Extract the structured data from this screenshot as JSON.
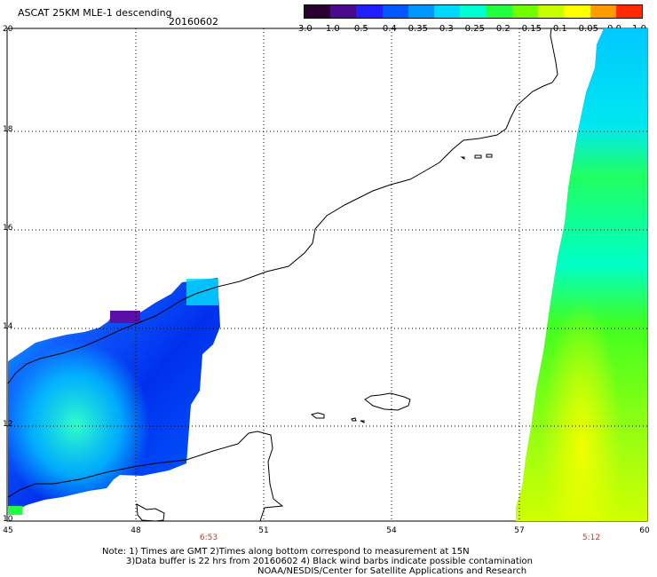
{
  "header": {
    "title": "ASCAT 25KM MLE-1 descending",
    "date": "20160602"
  },
  "colorbar": {
    "labels": [
      "-3.0",
      "-1.0",
      "-0.5",
      "-0.4",
      "-0.35",
      "-0.3",
      "-0.25",
      "-0.2",
      "-0.15",
      "-0.1",
      "-0.05",
      "0.0",
      "1.0"
    ],
    "colors": [
      "#2a0030",
      "#4b0a8c",
      "#2020ff",
      "#0058ff",
      "#0098ff",
      "#00d8ff",
      "#00ffd0",
      "#20ff40",
      "#70ff00",
      "#c8ff00",
      "#ffff00",
      "#ff9a00",
      "#ff2a00"
    ]
  },
  "axes": {
    "lat_labels": [
      "20",
      "18",
      "16",
      "14",
      "12",
      "10"
    ],
    "lon_labels": [
      "45",
      "48",
      "51",
      "54",
      "57",
      "60"
    ],
    "times": [
      "6:53",
      "5:12"
    ]
  },
  "notes": {
    "line1": "Note: 1) Times are GMT 2)Times along bottom correspond to measurement at 15N",
    "line2": "3)Data buffer is 22 hrs from 20160602 4) Black wind barbs indicate possible contamination",
    "line3": "NOAA/NESDIS/Center for Satellite Applications and Research"
  },
  "map": {
    "lon_range": [
      45,
      60
    ],
    "lat_range": [
      10,
      20
    ],
    "swaths": [
      {
        "name": "west",
        "time": "6:53"
      },
      {
        "name": "east",
        "time": "5:12"
      }
    ]
  }
}
